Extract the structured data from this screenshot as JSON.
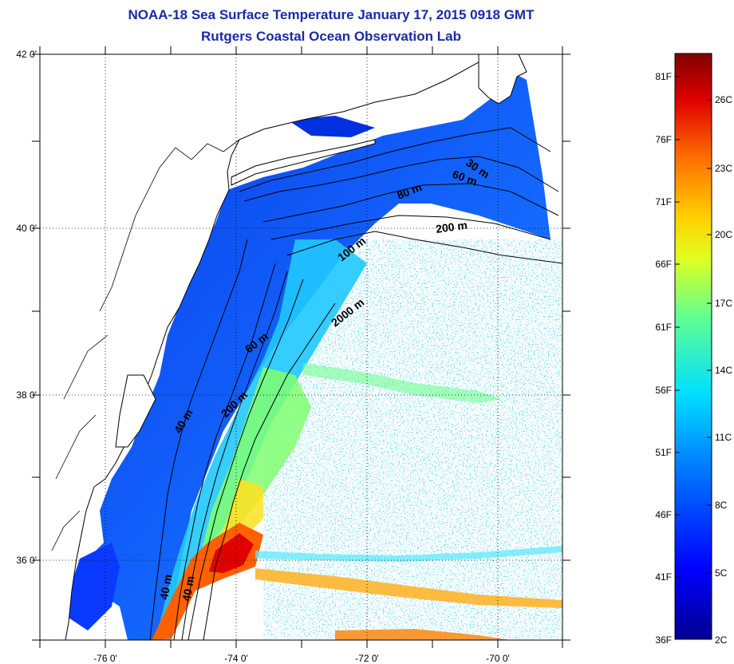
{
  "title": {
    "line1": "NOAA-18 Sea Surface Temperature January 17, 2015 0918 GMT",
    "line2": "Rutgers Coastal Ocean Observation Lab"
  },
  "map": {
    "lat_labels": [
      "42 0'",
      "40 0'",
      "38 0'",
      "36 0'"
    ],
    "lon_labels": [
      "-76 0'",
      "-74 0'",
      "-72 0'",
      "-70 0'"
    ],
    "lat_range": [
      35.0,
      42.0
    ],
    "lon_range": [
      -77.0,
      -69.0
    ],
    "grid": "dotted",
    "contour_labels": [
      "30 m",
      "60 m",
      "80 m",
      "200 m",
      "100 m",
      "2000 m",
      "60 m",
      "200 m",
      "40 m",
      "40 m"
    ]
  },
  "colorbar": {
    "fahrenheit_labels": [
      "81F",
      "76F",
      "71F",
      "66F",
      "61F",
      "56F",
      "51F",
      "46F",
      "41F",
      "36F"
    ],
    "celsius_labels": [
      "26C",
      "23C",
      "20C",
      "17C",
      "14C",
      "11C",
      "8C",
      "5C",
      "2C"
    ],
    "colormap": "jet",
    "colors": {
      "cold": "#00008f",
      "blue": "#0040ff",
      "cyan": "#00d0ff",
      "green": "#60ff90",
      "yellow": "#ffff00",
      "orange": "#ff9000",
      "red": "#e00000",
      "hot": "#800000"
    }
  }
}
